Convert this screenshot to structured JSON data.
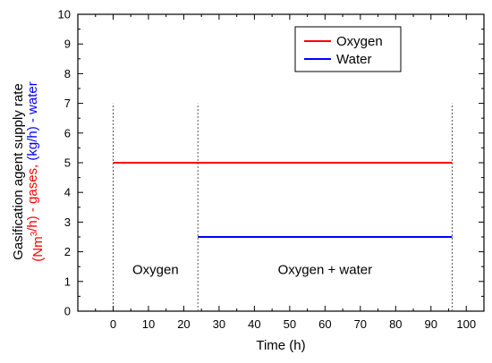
{
  "chart_data": {
    "type": "line",
    "xlabel": "Time (h)",
    "ylabel_line1": "Gasification agent supply rate",
    "ylabel_line2": [
      {
        "text": "(Nm",
        "color": "#ff0000"
      },
      {
        "text": "3",
        "color": "#ff0000",
        "sup": true
      },
      {
        "text": "/h) - gases, ",
        "color": "#ff0000"
      },
      {
        "text": "(kg/h) - water",
        "color": "#0000ff"
      }
    ],
    "xlim": [
      -10,
      105
    ],
    "ylim": [
      0,
      10
    ],
    "xticks": [
      0,
      10,
      20,
      30,
      40,
      50,
      60,
      70,
      80,
      90,
      100
    ],
    "yticks": [
      0,
      1,
      2,
      3,
      4,
      5,
      6,
      7,
      8,
      9,
      10
    ],
    "grid": false,
    "legend_position": "top-right",
    "series": [
      {
        "name": "Oxygen",
        "color": "#ff0000",
        "x": [
          0,
          96
        ],
        "y": [
          5,
          5
        ]
      },
      {
        "name": "Water",
        "color": "#0000ff",
        "x": [
          24,
          96
        ],
        "y": [
          2.5,
          2.5
        ]
      }
    ],
    "vlines": [
      {
        "x": 0,
        "y_max": 7
      },
      {
        "x": 24,
        "y_max": 7
      },
      {
        "x": 96,
        "y_max": 7
      }
    ],
    "annotations": [
      {
        "text": "Oxygen",
        "x": 12,
        "y": 1.4
      },
      {
        "text": "Oxygen + water",
        "x": 60,
        "y": 1.4
      }
    ]
  }
}
